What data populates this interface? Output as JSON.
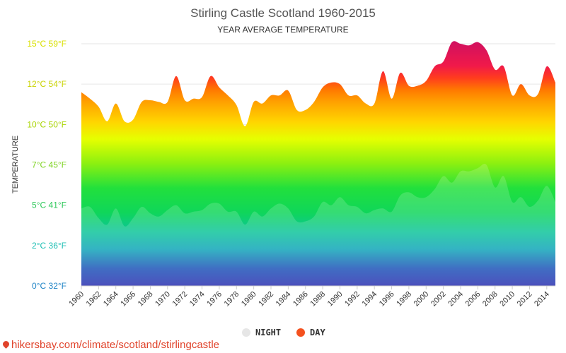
{
  "chart_data": {
    "type": "area",
    "title": "Stirling Castle Scotland 1960-2015",
    "subtitle": "YEAR AVERAGE TEMPERATURE",
    "ylabel": "TEMPERATURE",
    "ylim": [
      0,
      15
    ],
    "y_ticks": [
      {
        "value": 0,
        "label": "0°C 32°F",
        "color": "#1f84c6"
      },
      {
        "value": 2.5,
        "label": "2°C 36°F",
        "color": "#1fbfb4"
      },
      {
        "value": 5,
        "label": "5°C 41°F",
        "color": "#2ec85a"
      },
      {
        "value": 7.5,
        "label": "7°C 45°F",
        "color": "#7ed321"
      },
      {
        "value": 10,
        "label": "10°C 50°F",
        "color": "#a8d400"
      },
      {
        "value": 12.5,
        "label": "12°C 54°F",
        "color": "#c9d300"
      },
      {
        "value": 15,
        "label": "15°C 59°F",
        "color": "#d9e000"
      }
    ],
    "x_tick_labels": [
      "1960",
      "1962",
      "1964",
      "1966",
      "1968",
      "1970",
      "1972",
      "1974",
      "1976",
      "1978",
      "1980",
      "1982",
      "1984",
      "1986",
      "1988",
      "1990",
      "1992",
      "1994",
      "1996",
      "1998",
      "2000",
      "2002",
      "2004",
      "2006",
      "2008",
      "2010",
      "2012",
      "2014"
    ],
    "x": [
      1960,
      1961,
      1962,
      1963,
      1964,
      1965,
      1966,
      1967,
      1968,
      1969,
      1970,
      1971,
      1972,
      1973,
      1974,
      1975,
      1976,
      1977,
      1978,
      1979,
      1980,
      1981,
      1982,
      1983,
      1984,
      1985,
      1986,
      1987,
      1988,
      1989,
      1990,
      1991,
      1992,
      1993,
      1994,
      1995,
      1996,
      1997,
      1998,
      1999,
      2000,
      2001,
      2002,
      2003,
      2004,
      2005,
      2006,
      2007,
      2008,
      2009,
      2010,
      2011,
      2012,
      2013,
      2014,
      2015
    ],
    "series": [
      {
        "name": "DAY",
        "color": "#f4511e",
        "values": [
          12.0,
          11.6,
          11.1,
          10.2,
          11.3,
          10.2,
          10.3,
          11.4,
          11.5,
          11.4,
          11.4,
          13.0,
          11.5,
          11.6,
          11.7,
          13.0,
          12.3,
          11.8,
          11.2,
          9.9,
          11.4,
          11.3,
          11.8,
          11.8,
          12.1,
          10.9,
          10.9,
          11.4,
          12.3,
          12.6,
          12.5,
          11.8,
          11.8,
          11.3,
          11.3,
          13.3,
          11.6,
          13.2,
          12.4,
          12.4,
          12.7,
          13.6,
          13.9,
          15.1,
          15.0,
          14.9,
          15.1,
          14.6,
          13.4,
          13.6,
          11.8,
          12.5,
          11.8,
          11.9,
          13.6,
          12.6
        ]
      },
      {
        "name": "NIGHT",
        "color": "#e0e0e0",
        "values": [
          4.8,
          4.9,
          4.2,
          3.8,
          4.8,
          3.7,
          4.2,
          4.9,
          4.5,
          4.3,
          4.7,
          5.0,
          4.5,
          4.6,
          4.7,
          5.1,
          5.1,
          4.6,
          4.6,
          3.8,
          4.6,
          4.3,
          4.8,
          5.1,
          4.8,
          4.0,
          4.0,
          4.3,
          5.2,
          5.0,
          5.5,
          5.0,
          4.9,
          4.5,
          4.7,
          4.8,
          4.6,
          5.6,
          5.8,
          5.5,
          5.5,
          6.0,
          6.8,
          6.4,
          7.1,
          7.1,
          7.3,
          7.5,
          6.1,
          6.8,
          5.2,
          5.5,
          4.9,
          5.3,
          6.2,
          5.2
        ]
      }
    ],
    "legend": {
      "position": "bottom-center",
      "items": [
        "NIGHT",
        "DAY"
      ]
    },
    "grid": true
  },
  "source_text": "hikersbay.com/climate/scotland/stirlingcastle"
}
